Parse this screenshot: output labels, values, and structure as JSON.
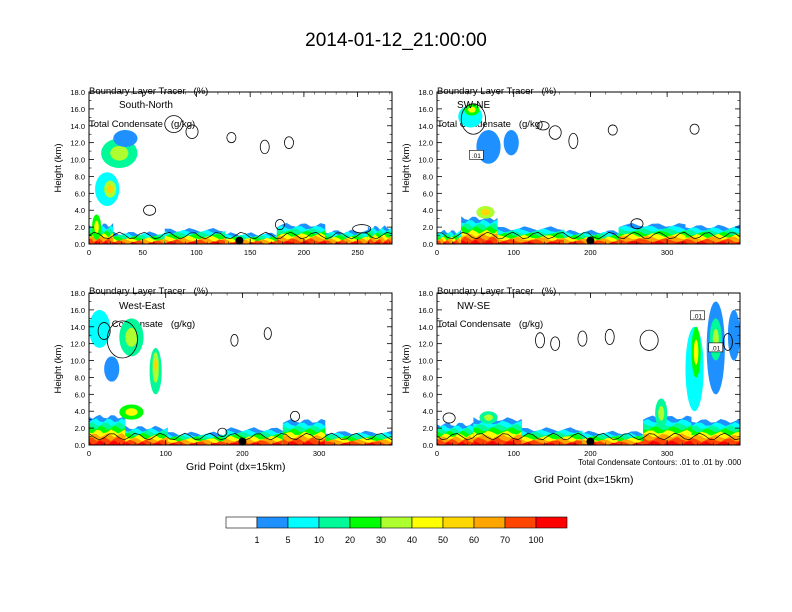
{
  "title": "2014-01-12_21:00:00",
  "colors": {
    "bins": [
      "#ffffff",
      "#1e90ff",
      "#00ffff",
      "#00fa9a",
      "#00ff00",
      "#adff2f",
      "#ffff00",
      "#ffd700",
      "#ffa500",
      "#ff4500",
      "#ff0000"
    ],
    "dot": "#000000",
    "axis": "#000000"
  },
  "chart_data": [
    {
      "type": "heatmap",
      "panel": "South-North",
      "header_line1": "Boundary Layer Tracer   (%)",
      "header_line2": "Total Condensate   (g/kg)",
      "ylabel": "Height (km)",
      "xlabel": "",
      "yticks": [
        "0.0",
        "2.0",
        "4.0",
        "6.0",
        "8.0",
        "10.0",
        "12.0",
        "14.0",
        "16.0",
        "18.0"
      ],
      "xticks": [
        "0",
        "50",
        "100",
        "150",
        "200",
        "250"
      ],
      "xlim": [
        0,
        282
      ],
      "ylim": [
        0,
        18
      ],
      "marker_x": 140,
      "contour_labels": []
    },
    {
      "type": "heatmap",
      "panel": "SW-NE",
      "header_line1": "Boundary Layer Tracer   (%)",
      "header_line2": "Total Condensate   (g/kg)",
      "ylabel": "Height (km)",
      "xlabel": "",
      "yticks": [
        "0.0",
        "2.0",
        "4.0",
        "6.0",
        "8.0",
        "10.0",
        "12.0",
        "14.0",
        "16.0",
        "18.0"
      ],
      "xticks": [
        "0",
        "100",
        "200",
        "300"
      ],
      "xlim": [
        0,
        395
      ],
      "ylim": [
        0,
        18
      ],
      "marker_x": 200,
      "contour_labels": [
        ".01"
      ]
    },
    {
      "type": "heatmap",
      "panel": "West-East",
      "header_line1": "Boundary Layer Tracer   (%)",
      "header_line2": "Total Condensate   (g/kg)",
      "ylabel": "Height (km)",
      "xlabel": "Grid Point (dx=15km)",
      "yticks": [
        "0.0",
        "2.0",
        "4.0",
        "6.0",
        "8.0",
        "10.0",
        "12.0",
        "14.0",
        "16.0",
        "18.0"
      ],
      "xticks": [
        "0",
        "100",
        "200",
        "300"
      ],
      "xlim": [
        0,
        395
      ],
      "ylim": [
        0,
        18
      ],
      "marker_x": 200,
      "contour_labels": []
    },
    {
      "type": "heatmap",
      "panel": "NW-SE",
      "header_line1": "Boundary Layer Tracer   (%)",
      "header_line2": "Total Condensate   (g/kg)",
      "ylabel": "Height (km)",
      "xlabel": "Grid Point (dx=15km)",
      "yticks": [
        "0.0",
        "2.0",
        "4.0",
        "6.0",
        "8.0",
        "10.0",
        "12.0",
        "14.0",
        "16.0",
        "18.0"
      ],
      "xticks": [
        "0",
        "100",
        "200",
        "300"
      ],
      "xlim": [
        0,
        395
      ],
      "ylim": [
        0,
        18
      ],
      "marker_x": 200,
      "contour_labels": [
        ".01",
        ".01"
      ],
      "footnote": "Total Condensate Contours: .01 to .01 by .000"
    }
  ],
  "colorbar": {
    "labels": [
      "1",
      "5",
      "10",
      "20",
      "30",
      "40",
      "50",
      "60",
      "70",
      "100"
    ]
  }
}
